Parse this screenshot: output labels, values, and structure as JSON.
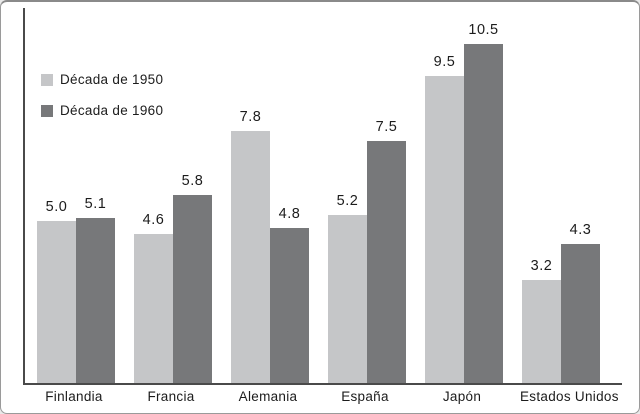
{
  "figure": {
    "background": "#ffffff",
    "border_color": "#9a9a9a",
    "axis_color": "#4a4a4a"
  },
  "chart_data": {
    "type": "bar",
    "title": "",
    "xlabel": "",
    "ylabel": "",
    "categories": [
      "Finlandia",
      "Francia",
      "Alemania",
      "España",
      "Japón",
      "Estados Unidos"
    ],
    "series": [
      {
        "name": "Década de 1950",
        "color": "#c5c6c8",
        "values": [
          5.0,
          4.6,
          7.8,
          5.2,
          9.5,
          3.2
        ]
      },
      {
        "name": "Década de 1960",
        "color": "#77787a",
        "values": [
          5.1,
          5.8,
          4.8,
          7.5,
          10.5,
          4.3
        ]
      }
    ],
    "data_labels": true,
    "data_label_format": "one_decimal",
    "grid": false,
    "ylim": [
      0,
      11.6
    ],
    "legend_position": "top-left",
    "axes_shown": [
      "left",
      "bottom"
    ]
  }
}
